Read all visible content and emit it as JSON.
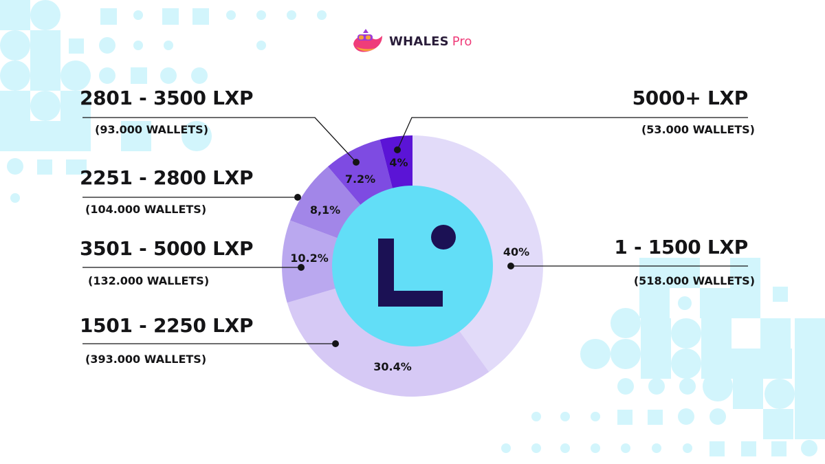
{
  "brand": {
    "name": "WHALES",
    "suffix": "Pro",
    "logo_icon": "whale-logo-icon"
  },
  "center_icon": "linea-logo-icon",
  "colors": {
    "deco": "#d2f5fc",
    "center_circle": "#62def7",
    "center_logo": "#1b1154",
    "brand_pink": "#ef3d7a"
  },
  "chart_data": {
    "type": "pie",
    "donut": true,
    "start": "12 o'clock",
    "direction": "clockwise",
    "slices": [
      {
        "id": "s1",
        "range": "1 - 1500 LXP",
        "wallets": "(518.000 WALLETS)",
        "pct_label": "40%",
        "value": 40.0,
        "color": "#e2dbf9"
      },
      {
        "id": "s2",
        "range": "1501 - 2250 LXP",
        "wallets": "(393.000 WALLETS)",
        "pct_label": "30.4%",
        "value": 30.4,
        "color": "#d6c9f5"
      },
      {
        "id": "s3",
        "range": "3501 - 5000 LXP",
        "wallets": "(132.000 WALLETS)",
        "pct_label": "10.2%",
        "value": 10.2,
        "color": "#baa8ef"
      },
      {
        "id": "s4",
        "range": "2251 - 2800 LXP",
        "wallets": "(104.000 WALLETS)",
        "pct_label": "8,1%",
        "value": 8.1,
        "color": "#a286e8"
      },
      {
        "id": "s5",
        "range": "2801 - 3500 LXP",
        "wallets": "(93.000 WALLETS)",
        "pct_label": "7.2%",
        "value": 7.2,
        "color": "#7e4be2"
      },
      {
        "id": "s6",
        "range": "5000+ LXP",
        "wallets": "(53.000 WALLETS)",
        "pct_label": "4%",
        "value": 4.0,
        "color": "#5b14d6"
      }
    ]
  }
}
